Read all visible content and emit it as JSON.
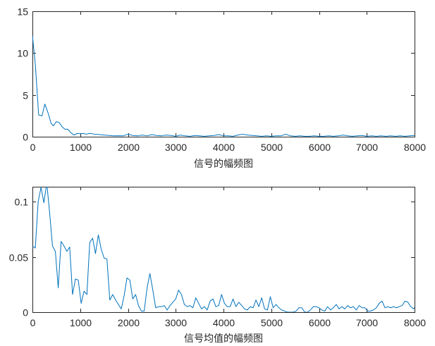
{
  "figure": {
    "background": "#ffffff",
    "line_color": "#0072BD",
    "axes_color": "#262626"
  },
  "chart_data": [
    {
      "type": "line",
      "title": "",
      "xlabel": "信号的幅频图",
      "ylabel": "",
      "xlim": [
        0,
        8000
      ],
      "ylim": [
        0,
        15
      ],
      "grid": false,
      "xticks": [
        0,
        1000,
        2000,
        3000,
        4000,
        5000,
        6000,
        7000,
        8000
      ],
      "xtick_labels": [
        "0",
        "1000",
        "2000",
        "3000",
        "4000",
        "5000",
        "6000",
        "7000",
        "8000"
      ],
      "yticks": [
        0,
        5,
        10,
        15
      ],
      "ytick_labels": [
        "0",
        "5",
        "10",
        "15"
      ],
      "series": [
        {
          "x": [
            0,
            60,
            130,
            200,
            260,
            330,
            390,
            440,
            500,
            560,
            620,
            680,
            740,
            800,
            870,
            940,
            1000,
            1060,
            1120,
            1200,
            1300,
            1400,
            1500,
            1600,
            1700,
            1800,
            1900,
            2000,
            2100,
            2200,
            2300,
            2400,
            2500,
            2600,
            2700,
            2800,
            2900,
            3000,
            3100,
            3200,
            3300,
            3400,
            3500,
            3600,
            3700,
            3800,
            3900,
            4000,
            4100,
            4200,
            4300,
            4400,
            4500,
            4600,
            4700,
            4800,
            4900,
            5000,
            5100,
            5200,
            5300,
            5400,
            5500,
            5600,
            5700,
            5800,
            5900,
            6000,
            6100,
            6200,
            6300,
            6400,
            6500,
            6600,
            6700,
            6800,
            6900,
            7000,
            7100,
            7200,
            7300,
            7400,
            7500,
            7600,
            7700,
            7800,
            7900,
            8000
          ],
          "y": [
            12.1,
            8.7,
            2.6,
            2.5,
            3.9,
            2.8,
            1.6,
            1.3,
            1.8,
            1.7,
            1.2,
            0.9,
            0.9,
            0.5,
            0.2,
            0.4,
            0.35,
            0.4,
            0.3,
            0.4,
            0.3,
            0.25,
            0.2,
            0.15,
            0.1,
            0.12,
            0.1,
            0.3,
            0.15,
            0.1,
            0.2,
            0.1,
            0.25,
            0.15,
            0.1,
            0.2,
            0.15,
            0.05,
            0.2,
            0.1,
            0.05,
            0.15,
            0.1,
            0.05,
            0.1,
            0.15,
            0.25,
            0.1,
            0.1,
            0.05,
            0.2,
            0.3,
            0.2,
            0.15,
            0.1,
            0.05,
            0.1,
            0.05,
            0.1,
            0.1,
            0.3,
            0.1,
            0.05,
            0.1,
            0.05,
            0.05,
            0.1,
            0.05,
            0.05,
            0.1,
            0.05,
            0.1,
            0.2,
            0.1,
            0.05,
            0.1,
            0.15,
            0.05,
            0.1,
            0.05,
            0.1,
            0.05,
            0.1,
            0.05,
            0.1,
            0.05,
            0.1,
            0.15
          ]
        }
      ]
    },
    {
      "type": "line",
      "title": "",
      "xlabel": "信号均值的幅频图",
      "ylabel": "",
      "xlim": [
        0,
        8000
      ],
      "ylim": [
        0,
        0.1135
      ],
      "grid": false,
      "xticks": [
        0,
        1000,
        2000,
        3000,
        4000,
        5000,
        6000,
        7000,
        8000
      ],
      "xtick_labels": [
        "0",
        "1000",
        "2000",
        "3000",
        "4000",
        "5000",
        "6000",
        "7000",
        "8000"
      ],
      "yticks": [
        0,
        0.05,
        0.1
      ],
      "ytick_labels": [
        "0",
        "0.05",
        "0.1"
      ],
      "series": [
        {
          "x": [
            0,
            60,
            120,
            180,
            240,
            300,
            360,
            420,
            480,
            540,
            600,
            660,
            720,
            780,
            840,
            900,
            960,
            1020,
            1080,
            1140,
            1200,
            1260,
            1320,
            1380,
            1440,
            1500,
            1560,
            1620,
            1680,
            1740,
            1800,
            1860,
            1920,
            1980,
            2040,
            2100,
            2160,
            2220,
            2280,
            2340,
            2400,
            2460,
            2520,
            2580,
            2640,
            2700,
            2760,
            2820,
            2880,
            2940,
            3000,
            3060,
            3120,
            3180,
            3240,
            3300,
            3360,
            3420,
            3480,
            3540,
            3600,
            3660,
            3720,
            3780,
            3840,
            3900,
            3960,
            4020,
            4080,
            4140,
            4200,
            4260,
            4320,
            4380,
            4440,
            4500,
            4560,
            4620,
            4680,
            4740,
            4800,
            4860,
            4920,
            4980,
            5040,
            5100,
            5160,
            5220,
            5280,
            5340,
            5400,
            5460,
            5520,
            5580,
            5640,
            5700,
            5760,
            5820,
            5880,
            5940,
            6000,
            6060,
            6120,
            6180,
            6240,
            6300,
            6360,
            6420,
            6480,
            6540,
            6600,
            6660,
            6720,
            6780,
            6840,
            6900,
            6960,
            7020,
            7080,
            7140,
            7200,
            7260,
            7320,
            7380,
            7440,
            7500,
            7560,
            7620,
            7680,
            7740,
            7800,
            7860,
            7920,
            7980,
            8000
          ],
          "y": [
            0.06,
            0.058,
            0.1,
            0.113,
            0.099,
            0.117,
            0.09,
            0.06,
            0.055,
            0.022,
            0.064,
            0.06,
            0.055,
            0.059,
            0.016,
            0.03,
            0.029,
            0.008,
            0.019,
            0.016,
            0.063,
            0.067,
            0.053,
            0.07,
            0.057,
            0.049,
            0.048,
            0.011,
            0.016,
            0.011,
            0.007,
            0.003,
            0.015,
            0.031,
            0.029,
            0.012,
            0.016,
            0.006,
            0.001,
            0.001,
            0.022,
            0.035,
            0.02,
            0.004,
            0.005,
            0.005,
            0.006,
            0.002,
            0.006,
            0.009,
            0.012,
            0.02,
            0.016,
            0.007,
            0.005,
            0.006,
            0.004,
            0.013,
            0.008,
            0.003,
            0.005,
            0.002,
            0.01,
            0.012,
            0.005,
            0.006,
            0.016,
            0.008,
            0.005,
            0.005,
            0.012,
            0.005,
            0.009,
            0.006,
            0.003,
            0.002,
            0.005,
            0.004,
            0.011,
            0.005,
            0.013,
            0.003,
            0.002,
            0.014,
            0.004,
            0.007,
            0.004,
            0.002,
            0.001,
            0.0,
            0.0,
            0.0,
            0.001,
            0.004,
            0.004,
            0.0,
            0.0,
            0.002,
            0.005,
            0.005,
            0.004,
            0.002,
            0.001,
            0.005,
            0.002,
            0.004,
            0.007,
            0.003,
            0.005,
            0.003,
            0.006,
            0.004,
            0.005,
            0.002,
            0.006,
            0.004,
            0.004,
            0.001,
            0.001,
            0.002,
            0.004,
            0.008,
            0.01,
            0.004,
            0.005,
            0.004,
            0.005,
            0.004,
            0.005,
            0.006,
            0.01,
            0.009,
            0.005,
            0.003,
            0.004
          ]
        }
      ]
    }
  ]
}
